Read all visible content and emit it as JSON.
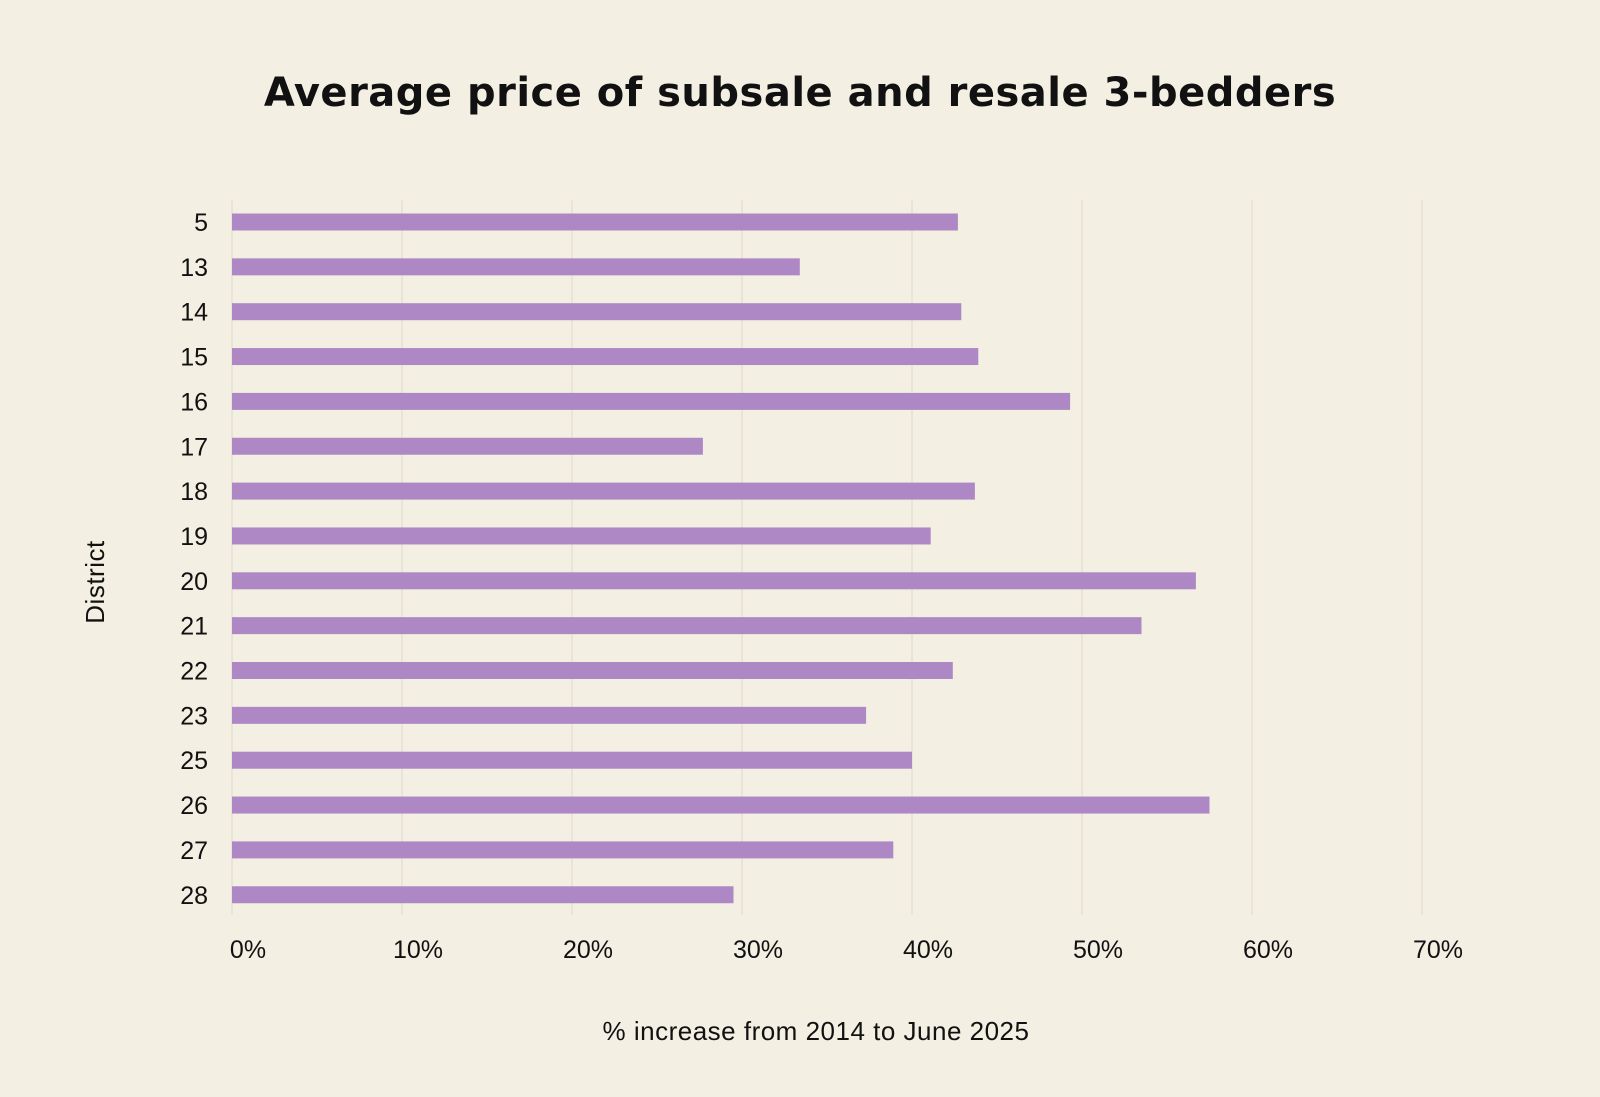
{
  "chart_data": {
    "type": "bar",
    "orientation": "horizontal",
    "title": "Average price of subsale and resale 3-bedders",
    "xlabel": "% increase from 2014 to June 2025",
    "ylabel": "District",
    "categories": [
      "5",
      "13",
      "14",
      "15",
      "16",
      "17",
      "18",
      "19",
      "20",
      "21",
      "22",
      "23",
      "25",
      "26",
      "27",
      "28"
    ],
    "series": [
      {
        "name": "% increase",
        "values": [
          42.7,
          33.4,
          42.9,
          43.9,
          49.3,
          27.7,
          43.7,
          41.1,
          56.7,
          53.5,
          42.4,
          37.3,
          40.0,
          57.5,
          38.9,
          29.5
        ]
      }
    ],
    "xlim": [
      0,
      70
    ],
    "xticks": [
      "0%",
      "10%",
      "20%",
      "30%",
      "40%",
      "50%",
      "60%",
      "70%"
    ],
    "grid": true,
    "bar_color": "#ae88c5",
    "grid_color": "#e3ddd0",
    "background_color": "#f4efe3"
  }
}
